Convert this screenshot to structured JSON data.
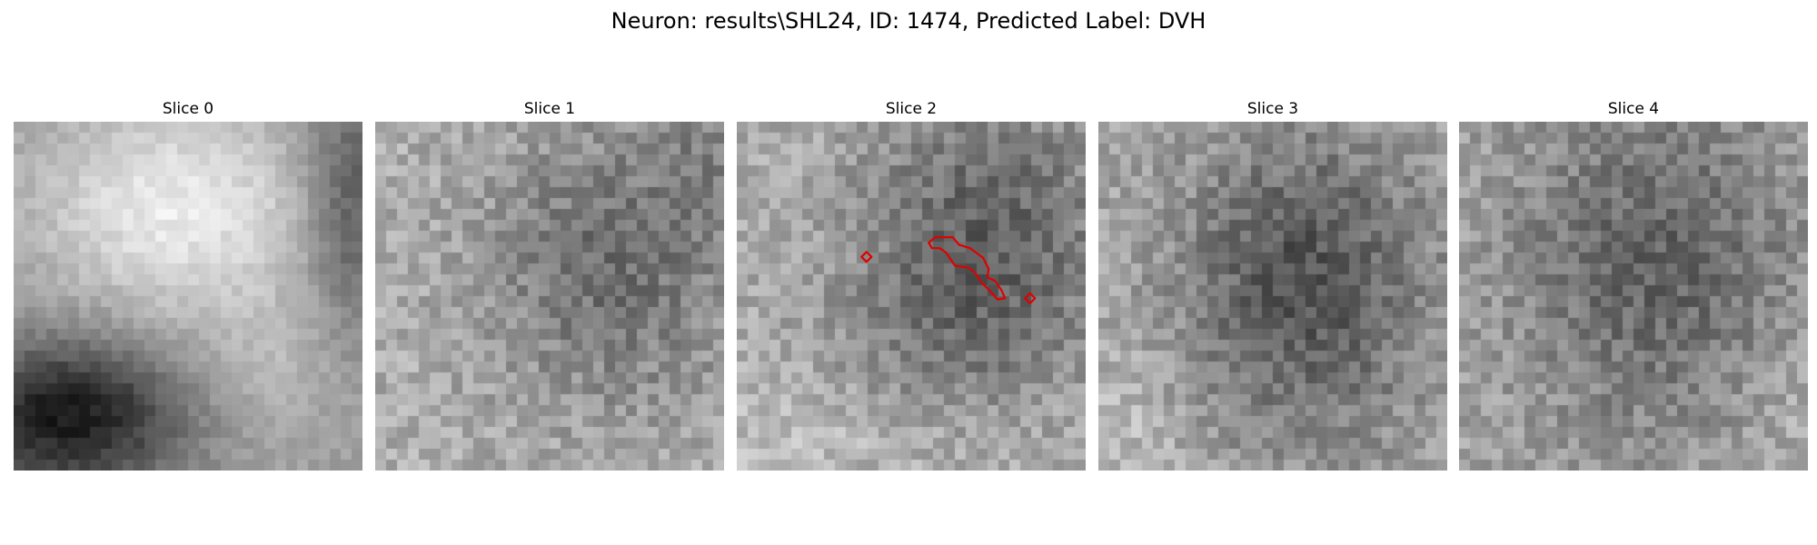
{
  "figure": {
    "suptitle": "Neuron: results\\SHL24, ID: 1474, Predicted Label: DVH",
    "colormap": "gray",
    "contour_color": "#e00000",
    "panels": [
      {
        "title": "Slice 0",
        "seed": 11,
        "pattern": "slice0",
        "roi": []
      },
      {
        "title": "Slice 1",
        "seed": 23,
        "pattern": "slice1",
        "roi": []
      },
      {
        "title": "Slice 2",
        "seed": 37,
        "pattern": "slice2",
        "roi": [
          {
            "shape": "diamond",
            "x": 11.9,
            "y": 12.4
          },
          {
            "shape": "blob",
            "points": [
              [
                17.6,
                11.1
              ],
              [
                18.2,
                10.6
              ],
              [
                19.8,
                10.6
              ],
              [
                20.4,
                11.3
              ],
              [
                21.4,
                11.6
              ],
              [
                22.6,
                12.5
              ],
              [
                23.1,
                13.5
              ],
              [
                23.0,
                14.3
              ],
              [
                23.7,
                14.6
              ],
              [
                24.3,
                15.5
              ],
              [
                24.6,
                16.2
              ],
              [
                23.9,
                16.3
              ],
              [
                23.2,
                15.5
              ],
              [
                22.4,
                14.7
              ],
              [
                21.9,
                13.9
              ],
              [
                21.3,
                13.4
              ],
              [
                20.6,
                13.3
              ],
              [
                20.0,
                13.2
              ],
              [
                19.6,
                12.6
              ],
              [
                19.2,
                12.0
              ],
              [
                18.6,
                11.6
              ],
              [
                17.9,
                11.6
              ]
            ]
          },
          {
            "shape": "diamond",
            "x": 26.9,
            "y": 16.2
          }
        ]
      },
      {
        "title": "Slice 3",
        "seed": 51,
        "pattern": "slice3",
        "roi": []
      },
      {
        "title": "Slice 4",
        "seed": 67,
        "pattern": "slice4",
        "roi": []
      }
    ]
  }
}
